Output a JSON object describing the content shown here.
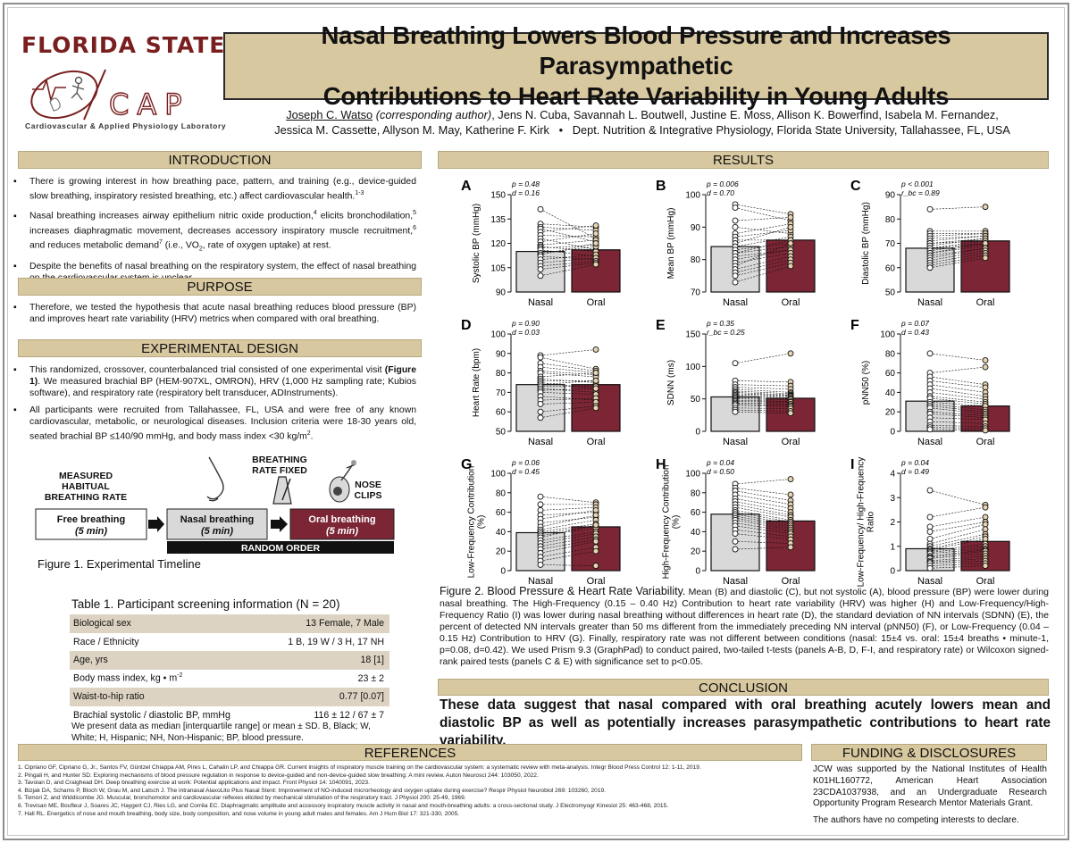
{
  "header": {
    "logo_text": "FLORIDA STATE",
    "logo_tm": "®",
    "cap_text": "CAP",
    "cap_subtitle": "Cardiovascular & Applied Physiology Laboratory",
    "title_line1": "Nasal Breathing Lowers Blood Pressure and Increases Parasympathetic",
    "title_line2": "Contributions to Heart Rate Variability in Young Adults",
    "lead_author": "Joseph C. Watso",
    "corresponding": "(corresponding author)",
    "coauthors_1": ", Jens N. Cuba, Savannah L. Boutwell, Justine E. Moss, Allison K. Bowerfind, Isabela M. Fernandez,",
    "coauthors_2": "Jessica M. Cassette, Allyson M. May, Katherine F. Kirk",
    "affiliation": "Dept. Nutrition & Integrative Physiology, Florida State University, Tallahassee, FL, USA",
    "sep": "•"
  },
  "sections": {
    "intro": "INTRODUCTION",
    "purpose": "PURPOSE",
    "design": "EXPERIMENTAL DESIGN",
    "results": "RESULTS",
    "conclusion": "CONCLUSION",
    "references": "REFERENCES",
    "funding": "FUNDING & DISCLOSURES"
  },
  "intro": {
    "b1": "There is growing interest in how breathing pace, pattern, and training (e.g., device-guided slow breathing, inspiratory resisted breathing, etc.) affect cardiovascular health.",
    "b1_sup": "1-3",
    "b2a": "Nasal breathing increases airway epithelium nitric oxide production,",
    "b2a_sup": "4",
    "b2b": " elicits bronchodilation,",
    "b2b_sup": "5",
    "b2c": " increases diaphragmatic movement, decreases accessory inspiratory muscle recruitment,",
    "b2c_sup": "6",
    "b2d": " and reduces metabolic demand",
    "b2d_sup": "7",
    "b2e": " (i.e., VO",
    "b2e_sub": "2",
    "b2f": ", rate of oxygen uptake) at rest.",
    "b3": "Despite the benefits of nasal breathing on the respiratory system, the effect of nasal breathing on the cardiovascular system is unclear."
  },
  "purpose": {
    "text": "Therefore, we tested the hypothesis that acute nasal breathing reduces blood pressure (BP) and improves heart rate variability (HRV) metrics when compared with oral breathing."
  },
  "design": {
    "b1a": "This randomized, crossover, counterbalanced trial consisted of one experimental visit ",
    "b1_fig": "(Figure 1)",
    "b1b": ". We measured brachial BP (HEM-907XL, OMRON), HRV (1,000 Hz sampling rate; Kubios software), and respiratory rate (respiratory belt transducer, ADInstruments).",
    "b2a": "All participants were recruited from Tallahassee, FL, USA and were free of any known cardiovascular, metabolic, or neurological diseases. Inclusion criteria were 18-30 years old, seated brachial BP ≤140/90 mmHg, and body mass index <30 kg/m",
    "b2_sup": "2",
    "b2b": "."
  },
  "timeline": {
    "label_measured_1": "MEASURED",
    "label_measured_2": "HABITUAL",
    "label_measured_3": "BREATHING RATE",
    "label_fixed_1": "BREATHING",
    "label_fixed_2": "RATE FIXED",
    "label_nose_1": "NOSE",
    "label_nose_2": "CLIPS",
    "box1_t": "Free breathing",
    "box1_s": "(5 min)",
    "box2_t": "Nasal breathing",
    "box2_s": "(5 min)",
    "box3_t": "Oral breathing",
    "box3_s": "(5 min)",
    "random": "RANDOM ORDER",
    "caption": "Figure 1. Experimental Timeline"
  },
  "table": {
    "title": "Table 1. Participant screening information (N = 20)",
    "rows": [
      {
        "label": "Biological sex",
        "value": "13 Female, 7 Male"
      },
      {
        "label": "Race / Ethnicity",
        "value": "1 B, 19 W / 3 H, 17 NH"
      },
      {
        "label": "Age, yrs",
        "value": "18 [1]"
      },
      {
        "label": "Body mass index, kg • m",
        "label_sup": "-2",
        "value": "23 ± 2"
      },
      {
        "label": "Waist-to-hip ratio",
        "value": "0.77 [0.07]"
      },
      {
        "label": "Brachial systolic / diastolic BP, mmHg",
        "value": "116 ± 12 /  67 ± 7"
      }
    ],
    "note": "We present data as median [interquartile range] or mean ± SD. B, Black; W, White; H, Hispanic; NH, Non-Hispanic; BP, blood pressure."
  },
  "chart_data": [
    {
      "type": "bar",
      "panel": "A",
      "title": "",
      "ylabel": "Systolic BP (mmHg)",
      "categories": [
        "Nasal",
        "Oral"
      ],
      "values": [
        115,
        116
      ],
      "ylim": [
        90,
        150
      ],
      "yticks": [
        "90",
        "105",
        "120",
        "135",
        "150"
      ],
      "stat1": "p = 0.48",
      "stat2": "d = 0.16",
      "pairs": [
        [
          141,
          123
        ],
        [
          132,
          130
        ],
        [
          130,
          128
        ],
        [
          129,
          121
        ],
        [
          127,
          131
        ],
        [
          125,
          124
        ],
        [
          123,
          116
        ],
        [
          121,
          126
        ],
        [
          119,
          122
        ],
        [
          118,
          115
        ],
        [
          117,
          119
        ],
        [
          116,
          112
        ],
        [
          114,
          118
        ],
        [
          113,
          120
        ],
        [
          112,
          110
        ],
        [
          110,
          113
        ],
        [
          108,
          111
        ],
        [
          106,
          109
        ],
        [
          104,
          108
        ],
        [
          100,
          107
        ]
      ]
    },
    {
      "type": "bar",
      "panel": "B",
      "ylabel": "Mean BP (mmHg)",
      "categories": [
        "Nasal",
        "Oral"
      ],
      "values": [
        84,
        86
      ],
      "ylim": [
        70,
        100
      ],
      "yticks": [
        "70",
        "80",
        "90",
        "100"
      ],
      "stat1": "p = 0.006",
      "stat2": "d = 0.70",
      "pairs": [
        [
          97,
          94
        ],
        [
          96,
          92
        ],
        [
          92,
          93
        ],
        [
          90,
          88
        ],
        [
          88,
          91
        ],
        [
          87,
          89
        ],
        [
          86,
          86
        ],
        [
          85,
          90
        ],
        [
          84,
          87
        ],
        [
          83,
          85
        ],
        [
          82,
          84
        ],
        [
          82,
          86
        ],
        [
          81,
          83
        ],
        [
          80,
          83
        ],
        [
          79,
          82
        ],
        [
          78,
          85
        ],
        [
          77,
          81
        ],
        [
          76,
          80
        ],
        [
          75,
          79
        ],
        [
          73,
          78
        ]
      ]
    },
    {
      "type": "bar",
      "panel": "C",
      "ylabel": "Diastolic BP (mmHg)",
      "categories": [
        "Nasal",
        "Oral"
      ],
      "values": [
        68,
        71
      ],
      "ylim": [
        50,
        90
      ],
      "yticks": [
        "50",
        "60",
        "70",
        "80",
        "90"
      ],
      "stat1": "p < 0.001",
      "stat2": "r_bc = 0.89",
      "pairs": [
        [
          84,
          85
        ],
        [
          75,
          75
        ],
        [
          74,
          74
        ],
        [
          73,
          74
        ],
        [
          72,
          73
        ],
        [
          71,
          73
        ],
        [
          70,
          72
        ],
        [
          70,
          71
        ],
        [
          69,
          72
        ],
        [
          68,
          71
        ],
        [
          68,
          70
        ],
        [
          67,
          70
        ],
        [
          66,
          69
        ],
        [
          66,
          70
        ],
        [
          65,
          68
        ],
        [
          64,
          68
        ],
        [
          63,
          67
        ],
        [
          62,
          66
        ],
        [
          61,
          65
        ],
        [
          60,
          64
        ]
      ]
    },
    {
      "type": "bar",
      "panel": "D",
      "ylabel": "Heart Rate (bpm)",
      "categories": [
        "Nasal",
        "Oral"
      ],
      "values": [
        74,
        74
      ],
      "ylim": [
        50,
        100
      ],
      "yticks": [
        "50",
        "60",
        "70",
        "80",
        "90",
        "100"
      ],
      "stat1": "p = 0.90",
      "stat2": "d = 0.03",
      "pairs": [
        [
          89,
          92
        ],
        [
          88,
          82
        ],
        [
          85,
          81
        ],
        [
          83,
          80
        ],
        [
          81,
          79
        ],
        [
          80,
          78
        ],
        [
          78,
          80
        ],
        [
          77,
          75
        ],
        [
          76,
          76
        ],
        [
          75,
          72
        ],
        [
          74,
          76
        ],
        [
          73,
          73
        ],
        [
          72,
          70
        ],
        [
          71,
          72
        ],
        [
          70,
          69
        ],
        [
          68,
          66
        ],
        [
          66,
          67
        ],
        [
          64,
          65
        ],
        [
          60,
          63
        ],
        [
          57,
          62
        ]
      ]
    },
    {
      "type": "bar",
      "panel": "E",
      "ylabel": "SDNN (ms)",
      "categories": [
        "Nasal",
        "Oral"
      ],
      "values": [
        53,
        51
      ],
      "ylim": [
        0,
        150
      ],
      "yticks": [
        "0",
        "50",
        "100",
        "150"
      ],
      "stat1": "p = 0.35",
      "stat2": "r_bc = 0.25",
      "pairs": [
        [
          105,
          120
        ],
        [
          78,
          76
        ],
        [
          72,
          70
        ],
        [
          68,
          65
        ],
        [
          65,
          60
        ],
        [
          62,
          58
        ],
        [
          60,
          56
        ],
        [
          58,
          55
        ],
        [
          56,
          54
        ],
        [
          54,
          52
        ],
        [
          52,
          50
        ],
        [
          50,
          49
        ],
        [
          48,
          46
        ],
        [
          46,
          45
        ],
        [
          44,
          42
        ],
        [
          42,
          40
        ],
        [
          40,
          38
        ],
        [
          36,
          35
        ],
        [
          33,
          31
        ],
        [
          30,
          28
        ]
      ]
    },
    {
      "type": "bar",
      "panel": "F",
      "ylabel": "pNN50 (%)",
      "categories": [
        "Nasal",
        "Oral"
      ],
      "values": [
        31,
        26
      ],
      "ylim": [
        0,
        100
      ],
      "yticks": [
        "0",
        "20",
        "40",
        "60",
        "80",
        "100"
      ],
      "stat1": "p = 0.07",
      "stat2": "d = 0.43",
      "pairs": [
        [
          80,
          73
        ],
        [
          60,
          66
        ],
        [
          56,
          48
        ],
        [
          52,
          45
        ],
        [
          48,
          40
        ],
        [
          44,
          36
        ],
        [
          40,
          33
        ],
        [
          36,
          30
        ],
        [
          34,
          28
        ],
        [
          30,
          26
        ],
        [
          28,
          22
        ],
        [
          26,
          20
        ],
        [
          24,
          18
        ],
        [
          20,
          16
        ],
        [
          18,
          14
        ],
        [
          14,
          12
        ],
        [
          10,
          8
        ],
        [
          6,
          5
        ],
        [
          4,
          3
        ],
        [
          2,
          1
        ]
      ]
    },
    {
      "type": "bar",
      "panel": "G",
      "ylabel": "Low-Frequency Contribution (%)",
      "categories": [
        "Nasal",
        "Oral"
      ],
      "values": [
        39,
        45
      ],
      "ylim": [
        0,
        100
      ],
      "yticks": [
        "0",
        "20",
        "40",
        "60",
        "80",
        "100"
      ],
      "stat1": "p = 0.06",
      "stat2": "d = 0.45",
      "pairs": [
        [
          76,
          70
        ],
        [
          68,
          68
        ],
        [
          62,
          65
        ],
        [
          57,
          60
        ],
        [
          53,
          62
        ],
        [
          49,
          55
        ],
        [
          45,
          57
        ],
        [
          42,
          52
        ],
        [
          40,
          48
        ],
        [
          38,
          46
        ],
        [
          36,
          44
        ],
        [
          34,
          47
        ],
        [
          31,
          40
        ],
        [
          28,
          38
        ],
        [
          25,
          35
        ],
        [
          22,
          32
        ],
        [
          18,
          30
        ],
        [
          14,
          24
        ],
        [
          10,
          20
        ],
        [
          6,
          5
        ]
      ]
    },
    {
      "type": "bar",
      "panel": "H",
      "ylabel": "High-Frequency Contribution (%)",
      "categories": [
        "Nasal",
        "Oral"
      ],
      "values": [
        58,
        51
      ],
      "ylim": [
        0,
        100
      ],
      "yticks": [
        "0",
        "20",
        "40",
        "60",
        "80",
        "100"
      ],
      "stat1": "p = 0.04",
      "stat2": "d = 0.50",
      "pairs": [
        [
          89,
          94
        ],
        [
          85,
          78
        ],
        [
          82,
          72
        ],
        [
          78,
          68
        ],
        [
          74,
          64
        ],
        [
          71,
          60
        ],
        [
          68,
          57
        ],
        [
          65,
          55
        ],
        [
          62,
          52
        ],
        [
          60,
          50
        ],
        [
          58,
          48
        ],
        [
          56,
          46
        ],
        [
          54,
          44
        ],
        [
          52,
          42
        ],
        [
          49,
          40
        ],
        [
          46,
          38
        ],
        [
          42,
          35
        ],
        [
          38,
          32
        ],
        [
          30,
          28
        ],
        [
          22,
          24
        ]
      ]
    },
    {
      "type": "bar",
      "panel": "I",
      "ylabel": "Low-Frequency/ High-Frequency Ratio",
      "categories": [
        "Nasal",
        "Oral"
      ],
      "values": [
        0.9,
        1.2
      ],
      "ylim": [
        0,
        4
      ],
      "yticks": [
        "0",
        "1",
        "2",
        "3",
        "4"
      ],
      "stat1": "p = 0.04",
      "stat2": "d = 0.49",
      "pairs": [
        [
          3.3,
          2.7
        ],
        [
          2.2,
          2.6
        ],
        [
          1.8,
          2.2
        ],
        [
          1.6,
          2.0
        ],
        [
          1.3,
          1.9
        ],
        [
          1.1,
          1.7
        ],
        [
          1.0,
          1.5
        ],
        [
          0.9,
          1.4
        ],
        [
          0.85,
          1.3
        ],
        [
          0.8,
          1.1
        ],
        [
          0.75,
          1.0
        ],
        [
          0.7,
          0.9
        ],
        [
          0.6,
          0.85
        ],
        [
          0.55,
          0.8
        ],
        [
          0.5,
          0.7
        ],
        [
          0.4,
          0.6
        ],
        [
          0.35,
          0.5
        ],
        [
          0.3,
          0.4
        ],
        [
          0.2,
          0.3
        ],
        [
          0.1,
          0.2
        ]
      ]
    }
  ],
  "fig2": {
    "title": "Figure 2. Blood Pressure & Heart Rate Variability.",
    "body": " Mean (B) and diastolic (C), but not systolic (A), blood pressure (BP) were lower during nasal breathing. The High-Frequency (0.15 – 0.40 Hz) Contribution to heart rate variability (HRV) was higher (H) and Low-Frequency/High-Frequency Ratio (I) was lower during nasal breathing without differences in heart rate (D), the standard deviation of NN intervals (SDNN) (E), the percent of detected NN intervals greater than 50 ms different from the immediately preceding NN interval (pNN50) (F), or Low-Frequency (0.04 – 0.15 Hz) Contribution to HRV (G). Finally, respiratory rate was not different between conditions (nasal: 15±4 vs. oral: 15±4 breaths • minute-1, p=0.08, d=0.42). We used Prism 9.3 (GraphPad) to conduct paired, two-tailed t-tests (panels A-B, D, F-I, and respiratory rate) or Wilcoxon signed-rank paired tests (panels C & E) with significance set to p<0.05."
  },
  "conclusion": "These data suggest that nasal compared with oral breathing acutely lowers mean and diastolic BP as well as potentially increases parasympathetic contributions to heart rate variability.",
  "references": [
    "1. Cipriano GF, Cipriano G, Jr., Santos FV, Güntzel Chiappa AM, Pires L, Cahalin LP, and Chiappa GR. Current insights of inspiratory muscle training on the cardiovascular system: a systematic review with meta-analysis. Integr Blood Press Control 12: 1-11, 2019.",
    "2. Pingali H, and Hunter SD. Exploring mechanisms of blood pressure regulation in response to device-guided and non-device-guided slow breathing: A mini review. Auton Neurosci 244: 103050, 2022.",
    "3. Tavoian D, and Craighead DH. Deep breathing exercise at work: Potential applications and impact. Front Physiol 14: 1040091, 2023.",
    "4. Bizjak DA, Schams P, Bloch W, Grau M, and Latsch J. The intranasal AlaxoLito Plus Nasal Stent: Improvement of NO-induced microrheology and oxygen uptake during exercise? Respir Physiol Neurobiol 269: 103260, 2019.",
    "5. Tomori Z, and Widdicombe JG. Muscular, bronchomotor and cardiovascular reflexes elicited by mechanical stimulation of the respiratory tract. J Physiol 200: 25-49, 1969.",
    "6. Trevisan ME, Boufleur J, Soares JC, Haygert CJ, Ries LG, and Corrêa EC. Diaphragmatic amplitude and accessory inspiratory muscle activity in nasal and mouth-breathing adults: a cross-sectional study. J Electromyogr Kinesiol 25: 463-468, 2015.",
    "7. Hall RL. Energetics of nose and mouth breathing, body size, body composition, and nose volume in young adult males and females. Am J Hum Biol 17: 321-330, 2005."
  ],
  "funding": {
    "text": "JCW was supported by the National Institutes of Health K01HL160772, American Heart Association 23CDA1037938, and an Undergraduate Research Opportunity Program Research Mentor Materials Grant.",
    "disclosure": "The authors have no competing interests to declare."
  },
  "colors": {
    "tan": "#d8c8a0",
    "nasal_bar": "#d9d9d9",
    "oral_bar": "#7b2535",
    "garnet": "#7a1f1f"
  }
}
